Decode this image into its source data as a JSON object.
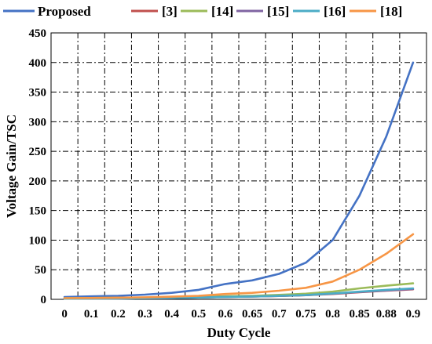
{
  "chart_data": {
    "type": "line",
    "title": "",
    "xlabel": "Duty Cycle",
    "ylabel": "Voltage Gain/TSC",
    "categories": [
      "0",
      "0.1",
      "0.2",
      "0.3",
      "0.4",
      "0.5",
      "0.6",
      "0.65",
      "0.7",
      "0.75",
      "0.8",
      "0.85",
      "0.88",
      "0.9"
    ],
    "yticks": [
      "0",
      "50",
      "100",
      "150",
      "200",
      "250",
      "300",
      "350",
      "400",
      "450"
    ],
    "ylim": [
      0,
      450
    ],
    "grid": true,
    "legend_position": "top",
    "series": [
      {
        "name": "Proposed",
        "color": "#4472C4",
        "values": [
          4,
          5,
          6,
          8,
          11,
          16,
          26,
          32,
          43,
          62,
          100,
          175,
          275,
          400
        ]
      },
      {
        "name": "[3]",
        "color": "#C0504D",
        "values": [
          1,
          1.2,
          1.5,
          1.8,
          2.3,
          3,
          4,
          4.7,
          5.7,
          7,
          9,
          12,
          14.5,
          17
        ]
      },
      {
        "name": "[14]",
        "color": "#9BBB59",
        "values": [
          2,
          2.2,
          2.5,
          2.9,
          3.3,
          4,
          5.2,
          6,
          7.5,
          9.5,
          13,
          18.5,
          23,
          27
        ]
      },
      {
        "name": "[15]",
        "color": "#8064A2",
        "values": [
          1,
          1.2,
          1.5,
          1.8,
          2.3,
          3,
          4,
          4.7,
          5.7,
          7,
          9.5,
          12.5,
          15,
          17.5
        ]
      },
      {
        "name": "[16]",
        "color": "#4BACC6",
        "values": [
          1,
          1.2,
          1.5,
          1.9,
          2.4,
          3.1,
          4.1,
          4.8,
          5.8,
          7.2,
          9.8,
          13,
          16,
          18.5
        ]
      },
      {
        "name": "[18]",
        "color": "#F79646",
        "values": [
          2,
          2.3,
          2.8,
          3.4,
          4.5,
          6,
          9,
          11,
          14.5,
          19.5,
          30,
          50,
          77,
          110
        ]
      }
    ]
  }
}
